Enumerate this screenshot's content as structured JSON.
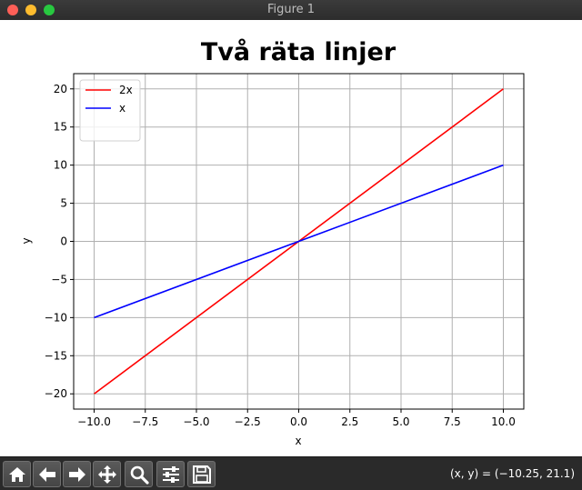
{
  "window": {
    "title": "Figure 1"
  },
  "toolbar": {
    "buttons": [
      {
        "name": "home-button",
        "icon": "home-icon"
      },
      {
        "name": "back-button",
        "icon": "arrow-left-icon"
      },
      {
        "name": "forward-button",
        "icon": "arrow-right-icon"
      },
      {
        "name": "pan-button",
        "icon": "move-icon"
      },
      {
        "name": "zoom-button",
        "icon": "zoom-icon"
      },
      {
        "name": "configure-subplots-button",
        "icon": "sliders-icon"
      },
      {
        "name": "save-button",
        "icon": "floppy-disk-icon"
      }
    ],
    "coords": "(x, y) = (−10.25, 21.1)"
  },
  "chart_data": {
    "type": "line",
    "title": "Två räta linjer",
    "xlabel": "x",
    "ylabel": "y",
    "xlim": [
      -11,
      11
    ],
    "ylim": [
      -22,
      22
    ],
    "xticks": [
      -10,
      -7.5,
      -5,
      -2.5,
      0,
      2.5,
      5,
      7.5,
      10
    ],
    "xtick_labels": [
      "−10.0",
      "−7.5",
      "−5.0",
      "−2.5",
      "0.0",
      "2.5",
      "5.0",
      "7.5",
      "10.0"
    ],
    "yticks": [
      -20,
      -15,
      -10,
      -5,
      0,
      5,
      10,
      15,
      20
    ],
    "ytick_labels": [
      "−20",
      "−15",
      "−10",
      "−5",
      "0",
      "5",
      "10",
      "15",
      "20"
    ],
    "grid": true,
    "legend_position": "upper-left",
    "series": [
      {
        "name": "2x",
        "color": "#ff0000",
        "x": [
          -10,
          10
        ],
        "y": [
          -20,
          20
        ]
      },
      {
        "name": "x",
        "color": "#0000ff",
        "x": [
          -10,
          10
        ],
        "y": [
          -10,
          10
        ]
      }
    ]
  }
}
